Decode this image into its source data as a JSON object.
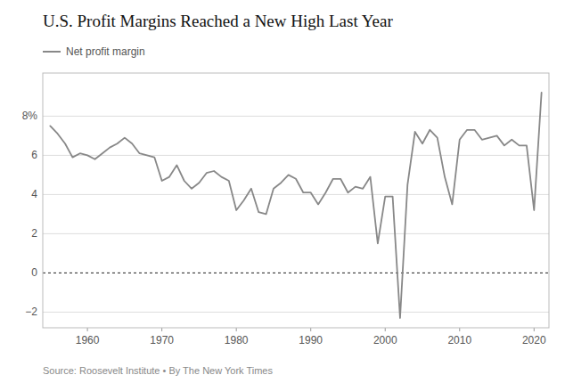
{
  "chart_data": {
    "type": "line",
    "title": "U.S. Profit Margins Reached a New High Last Year",
    "annotations": [
      "Source: Roosevelt Institute • By The New York Times"
    ],
    "x": [
      1955,
      1956,
      1957,
      1958,
      1959,
      1960,
      1961,
      1962,
      1963,
      1964,
      1965,
      1966,
      1967,
      1968,
      1969,
      1970,
      1971,
      1972,
      1973,
      1974,
      1975,
      1976,
      1977,
      1978,
      1979,
      1980,
      1981,
      1982,
      1983,
      1984,
      1985,
      1986,
      1987,
      1988,
      1989,
      1990,
      1991,
      1992,
      1993,
      1994,
      1995,
      1996,
      1997,
      1998,
      1999,
      2000,
      2001,
      2002,
      2003,
      2004,
      2005,
      2006,
      2007,
      2008,
      2009,
      2010,
      2011,
      2012,
      2013,
      2014,
      2015,
      2016,
      2017,
      2018,
      2019,
      2020,
      2021
    ],
    "series": [
      {
        "name": "Net profit margin",
        "color": "#888888",
        "values": [
          7.5,
          7.1,
          6.6,
          5.9,
          6.1,
          6.0,
          5.8,
          6.1,
          6.4,
          6.6,
          6.9,
          6.6,
          6.1,
          6.0,
          5.9,
          4.7,
          4.9,
          5.5,
          4.7,
          4.3,
          4.6,
          5.1,
          5.2,
          4.9,
          4.7,
          3.2,
          3.7,
          4.3,
          3.1,
          3.0,
          4.3,
          4.6,
          5.0,
          4.8,
          4.1,
          4.1,
          3.5,
          4.1,
          4.8,
          4.8,
          4.1,
          4.4,
          4.3,
          4.9,
          1.5,
          3.9,
          3.9,
          -2.3,
          4.5,
          7.2,
          6.6,
          7.3,
          6.9,
          4.9,
          3.5,
          6.8,
          7.3,
          7.3,
          6.8,
          6.9,
          7.0,
          6.5,
          6.8,
          6.5,
          6.5,
          3.2,
          9.2
        ]
      }
    ],
    "xlim": [
      1954,
      2022
    ],
    "ylim": [
      -2.8,
      10.2
    ],
    "xticks": [
      1960,
      1970,
      1980,
      1990,
      2000,
      2010,
      2020
    ],
    "yticks": [
      {
        "value": -2,
        "label": "−2"
      },
      0,
      2,
      4,
      6,
      {
        "value": 8,
        "label": "8%"
      }
    ],
    "grid": true,
    "legend": "top-left"
  }
}
